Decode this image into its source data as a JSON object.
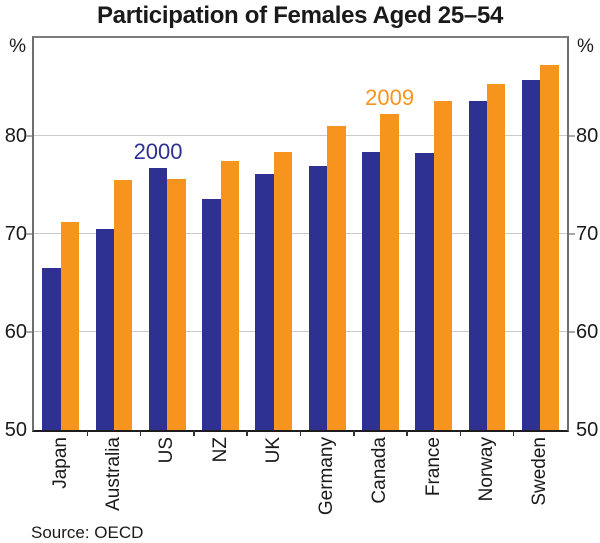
{
  "chart_data": {
    "type": "bar",
    "title": "Participation of Females Aged 25–54",
    "y_unit": "%",
    "ylabel": "",
    "xlabel": "",
    "ylim": [
      50,
      90
    ],
    "yticks": [
      50,
      60,
      70,
      80
    ],
    "gridlines": [
      60,
      70,
      80
    ],
    "grid": true,
    "legend_position": "inline-labels-above-bars",
    "categories": [
      "Japan",
      "Australia",
      "US",
      "NZ",
      "UK",
      "Germany",
      "Canada",
      "France",
      "Norway",
      "Sweden"
    ],
    "series": [
      {
        "name": "2000",
        "color": "#2e3192",
        "values": [
          66.5,
          70.5,
          76.7,
          73.6,
          76.1,
          76.9,
          78.4,
          78.3,
          83.6,
          85.7
        ],
        "label": {
          "text": "2000",
          "anchor_category": "US"
        }
      },
      {
        "name": "2009",
        "color": "#f7941e",
        "values": [
          71.2,
          75.5,
          75.6,
          77.5,
          78.4,
          81.0,
          82.2,
          83.6,
          85.3,
          87.2
        ],
        "label": {
          "text": "2009",
          "anchor_category": "Canada"
        }
      }
    ],
    "source": "Source: OECD"
  }
}
